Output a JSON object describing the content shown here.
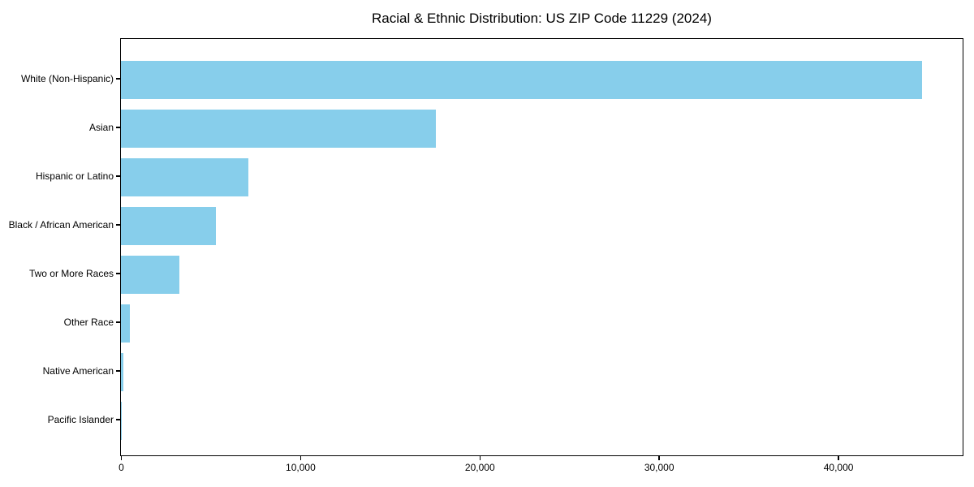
{
  "title": "Racial & Ethnic Distribution: US ZIP Code 11229 (2024)",
  "chart_data": {
    "type": "bar",
    "orientation": "horizontal",
    "title": "Racial & Ethnic Distribution: US ZIP Code 11229 (2024)",
    "xlabel": "",
    "ylabel": "",
    "categories": [
      "White (Non-Hispanic)",
      "Asian",
      "Hispanic or Latino",
      "Black / African American",
      "Two or More Races",
      "Other Race",
      "Native American",
      "Pacific Islander"
    ],
    "values": [
      44700,
      17550,
      7100,
      5300,
      3250,
      510,
      130,
      25
    ],
    "xlim": [
      0,
      46900
    ],
    "xticks": [
      0,
      10000,
      20000,
      30000,
      40000
    ],
    "xtick_labels": [
      "0",
      "10,000",
      "20,000",
      "30,000",
      "40,000"
    ],
    "grid": false,
    "legend": null,
    "bar_color": "#87CEEB",
    "frame_color": "#000000",
    "background_color": "#ffffff"
  }
}
